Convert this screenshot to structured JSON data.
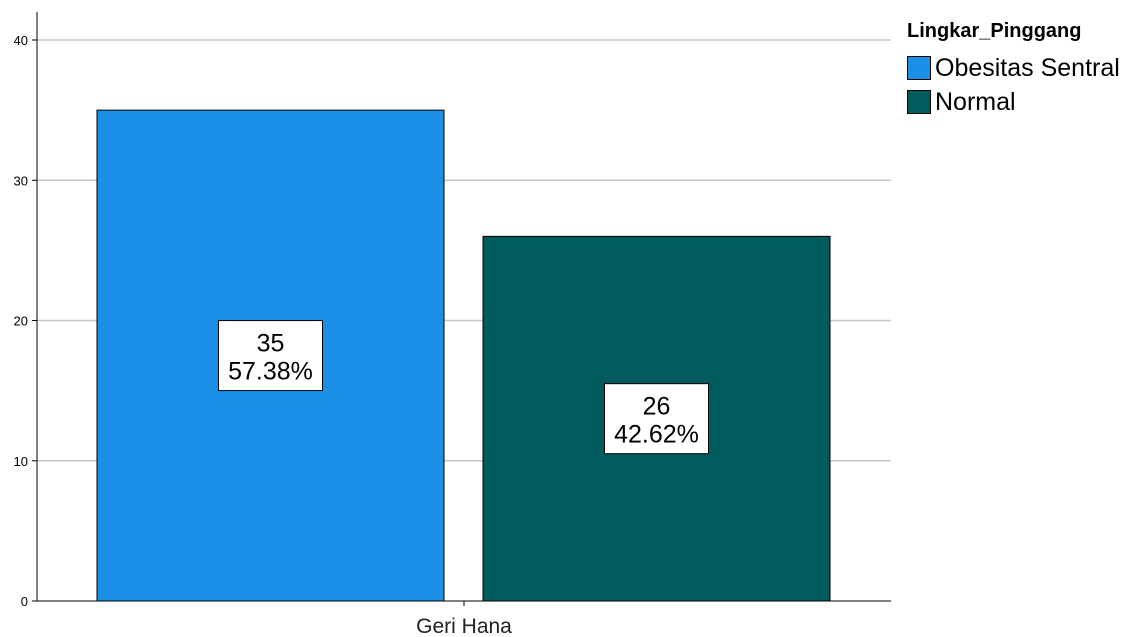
{
  "chart_data": {
    "type": "bar",
    "title": "",
    "xlabel": "",
    "ylabel": "",
    "categories": [
      "Geri Hana"
    ],
    "ylim": [
      0,
      40
    ],
    "yticks": [
      0,
      10,
      20,
      30,
      40
    ],
    "grid": true,
    "legend_position": "top-right",
    "legend_title": "Lingkar_Pinggang",
    "series": [
      {
        "name": "Obesitas Sentral",
        "values": [
          35
        ],
        "percent_labels": [
          "57.38%"
        ],
        "color": "#1a8fe6"
      },
      {
        "name": "Normal",
        "values": [
          26
        ],
        "percent_labels": [
          "42.62%"
        ],
        "color": "#005c5c"
      }
    ]
  }
}
